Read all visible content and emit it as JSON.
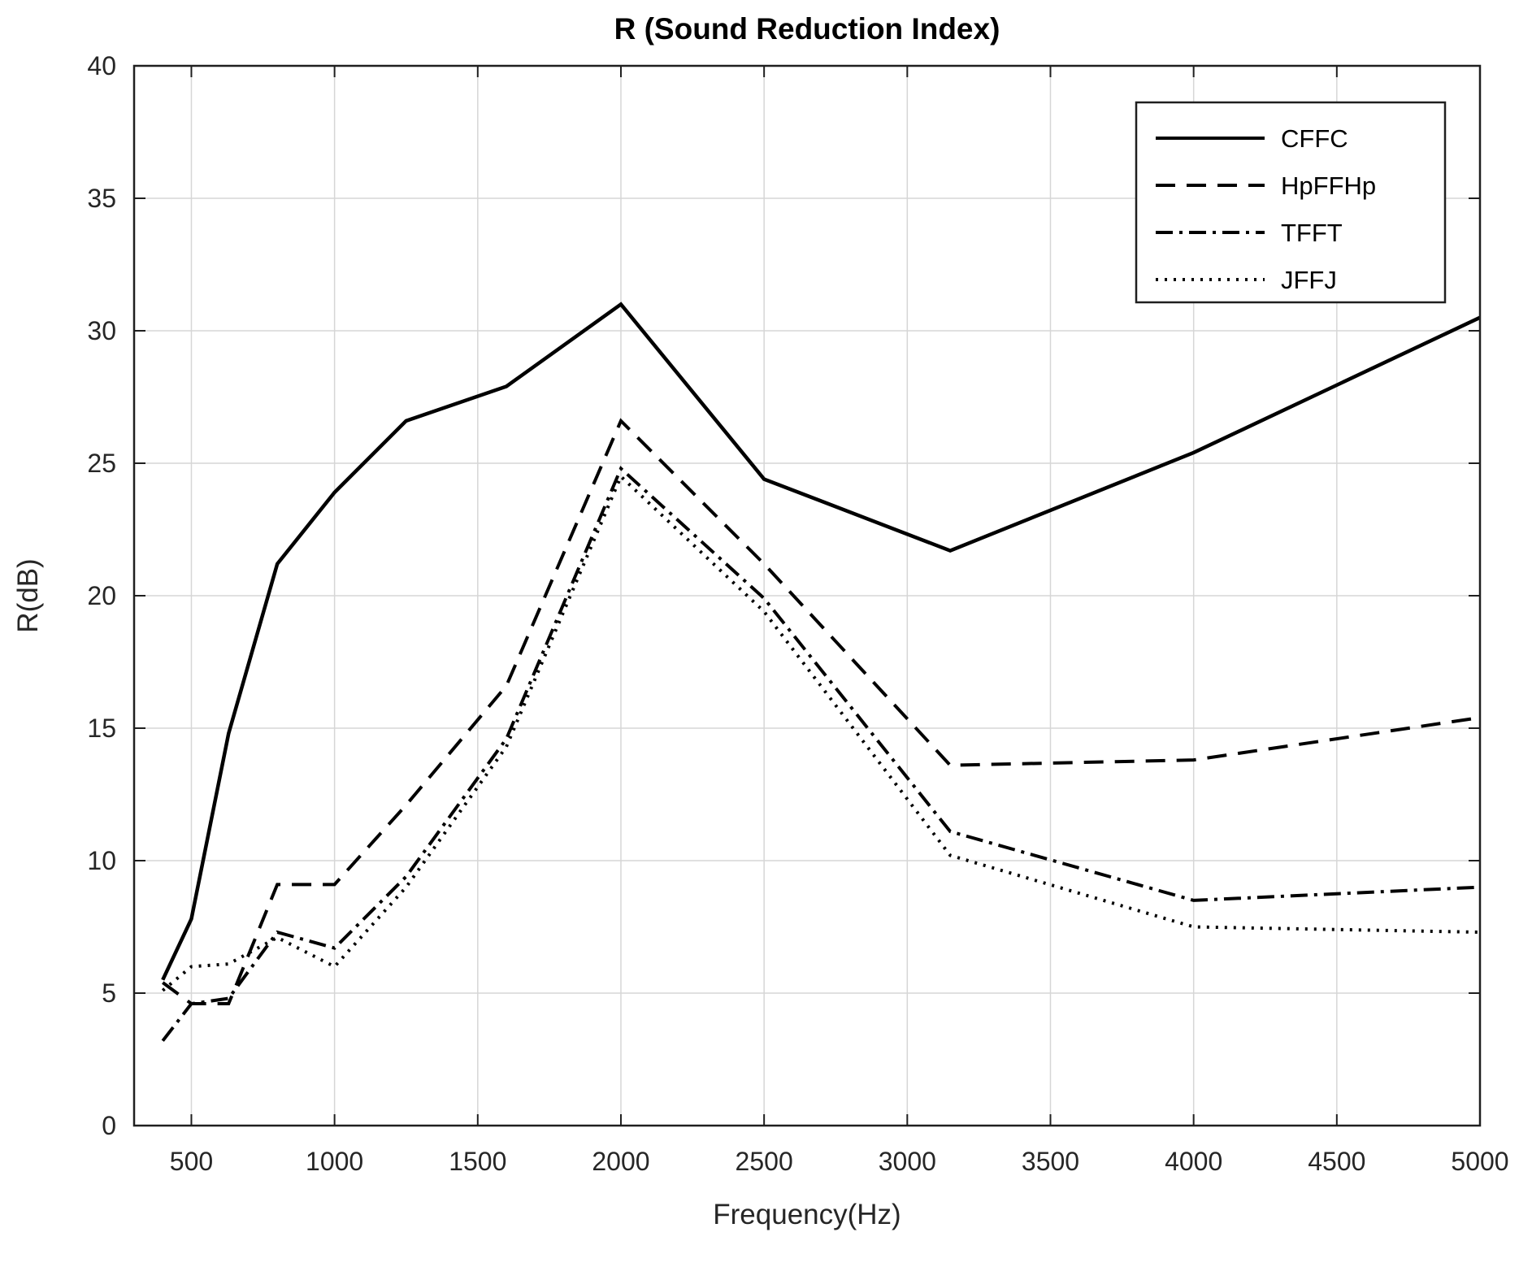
{
  "chart_data": {
    "type": "line",
    "title": "R (Sound Reduction Index)",
    "xlabel": "Frequency(Hz)",
    "ylabel": "R(dB)",
    "xlim": [
      300,
      5000
    ],
    "ylim": [
      0,
      40
    ],
    "xticks": [
      500,
      1000,
      1500,
      2000,
      2500,
      3000,
      3500,
      4000,
      4500,
      5000
    ],
    "yticks": [
      0,
      5,
      10,
      15,
      20,
      25,
      30,
      35,
      40
    ],
    "grid": true,
    "legend_position": "top-right",
    "line_color": "#000000",
    "x": [
      400,
      500,
      630,
      800,
      1000,
      1250,
      1600,
      2000,
      2500,
      3150,
      4000,
      5000
    ],
    "series": [
      {
        "name": "CFFC",
        "style": "solid",
        "values": [
          5.5,
          7.8,
          14.8,
          21.2,
          23.9,
          26.6,
          27.9,
          31.0,
          24.4,
          21.7,
          25.4,
          30.5
        ]
      },
      {
        "name": "HpFFHp",
        "style": "dashed",
        "values": [
          5.4,
          4.6,
          4.6,
          9.1,
          9.1,
          12.1,
          16.6,
          26.6,
          21.2,
          13.6,
          13.8,
          15.4
        ]
      },
      {
        "name": "TFFT",
        "style": "dashdot",
        "values": [
          3.2,
          4.6,
          4.8,
          7.3,
          6.7,
          9.4,
          14.6,
          24.8,
          19.9,
          11.1,
          8.5,
          9.0
        ]
      },
      {
        "name": "JFFJ",
        "style": "dotted",
        "values": [
          5.1,
          6.0,
          6.1,
          7.1,
          6.0,
          9.0,
          14.3,
          24.5,
          19.4,
          10.2,
          7.5,
          7.3
        ]
      }
    ]
  }
}
